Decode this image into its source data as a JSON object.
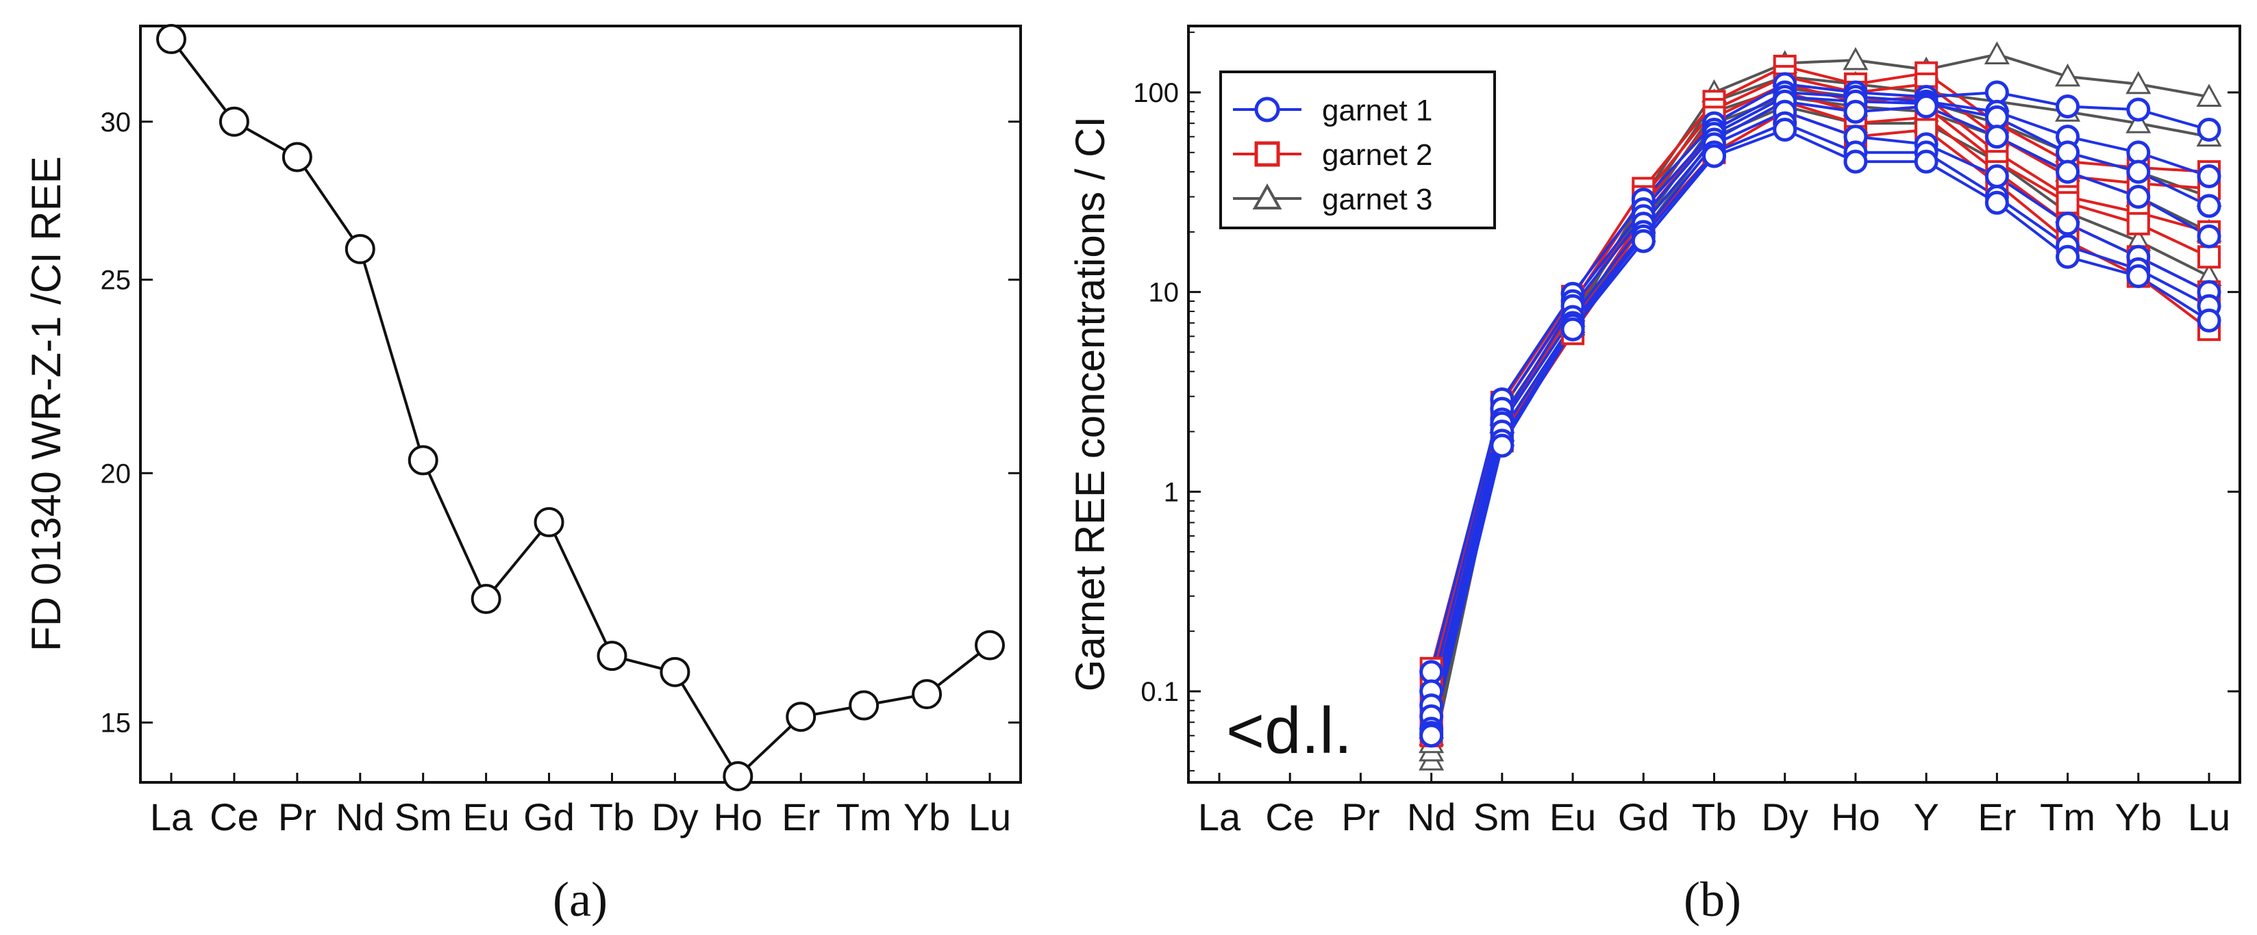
{
  "chart_data": [
    {
      "type": "line",
      "panel_label": "(a)",
      "ylabel": "FD 01340 WR-Z-1 /CI REE",
      "xlabel": "",
      "yscale": "log",
      "ylim": [
        14.0,
        33.5
      ],
      "yticks": [
        "15",
        "20",
        "25",
        "30"
      ],
      "grid": false,
      "categories": [
        "La",
        "Ce",
        "Pr",
        "Nd",
        "Sm",
        "Eu",
        "Gd",
        "Tb",
        "Dy",
        "Ho",
        "Er",
        "Tm",
        "Yb",
        "Lu"
      ],
      "series": [
        {
          "name": "FD 01340 WR-Z-1",
          "values": [
            33.0,
            30.0,
            28.8,
            25.9,
            20.3,
            17.3,
            18.9,
            16.2,
            15.9,
            14.1,
            15.1,
            15.3,
            15.5,
            16.4
          ]
        }
      ]
    },
    {
      "type": "line",
      "panel_label": "(b)",
      "ylabel": "Garnet REE concentrations / CI",
      "xlabel": "",
      "yscale": "log",
      "ylim": [
        0.035,
        215
      ],
      "yticks": [
        "0.1",
        "1",
        "10",
        "100"
      ],
      "grid": false,
      "legend_position": "top-left",
      "annotation": "<d.l.",
      "categories": [
        "La",
        "Ce",
        "Pr",
        "Nd",
        "Sm",
        "Eu",
        "Gd",
        "Tb",
        "Dy",
        "Ho",
        "Y",
        "Er",
        "Tm",
        "Yb",
        "Lu"
      ],
      "series": [
        {
          "name": "garnet 3",
          "group": "garnet 3",
          "color": "#555555",
          "values": [
            null,
            null,
            null,
            0.045,
            2.0,
            7.0,
            30,
            100,
            140,
            145,
            130,
            155,
            120,
            110,
            95
          ]
        },
        {
          "name": "garnet 3",
          "group": "garnet 3",
          "color": "#555555",
          "values": [
            null,
            null,
            null,
            0.05,
            2.2,
            7.5,
            27,
            90,
            120,
            110,
            100,
            90,
            80,
            70,
            60
          ]
        },
        {
          "name": "garnet 3",
          "group": "garnet 3",
          "color": "#555555",
          "values": [
            null,
            null,
            null,
            0.055,
            2.4,
            8.0,
            25,
            80,
            105,
            95,
            90,
            70,
            50,
            40,
            30
          ]
        },
        {
          "name": "garnet 3",
          "group": "garnet 3",
          "color": "#555555",
          "values": [
            null,
            null,
            null,
            0.06,
            2.0,
            7.0,
            22,
            70,
            95,
            85,
            80,
            60,
            40,
            30,
            20
          ]
        },
        {
          "name": "garnet 3",
          "group": "garnet 3",
          "color": "#555555",
          "values": [
            null,
            null,
            null,
            0.065,
            1.9,
            6.8,
            20,
            60,
            85,
            70,
            70,
            45,
            25,
            18,
            12
          ]
        },
        {
          "name": "garnet 2",
          "group": "garnet 2",
          "color": "#e02020",
          "values": [
            null,
            null,
            null,
            0.13,
            2.8,
            9.5,
            33,
            90,
            135,
            110,
            125,
            70,
            45,
            42,
            40
          ]
        },
        {
          "name": "garnet 2",
          "group": "garnet 2",
          "color": "#e02020",
          "values": [
            null,
            null,
            null,
            0.11,
            2.6,
            8.8,
            30,
            82,
            120,
            100,
            110,
            60,
            38,
            35,
            33
          ]
        },
        {
          "name": "garnet 2",
          "group": "garnet 2",
          "color": "#e02020",
          "values": [
            null,
            null,
            null,
            0.09,
            2.3,
            8.0,
            27,
            75,
            110,
            90,
            95,
            50,
            30,
            25,
            20
          ]
        },
        {
          "name": "garnet 2",
          "group": "garnet 2",
          "color": "#e02020",
          "values": [
            null,
            null,
            null,
            0.075,
            2.0,
            7.0,
            24,
            65,
            100,
            80,
            85,
            45,
            28,
            22,
            15
          ]
        },
        {
          "name": "garnet 2",
          "group": "garnet 2",
          "color": "#e02020",
          "values": [
            null,
            null,
            null,
            0.065,
            1.9,
            6.5,
            22,
            58,
            90,
            70,
            75,
            40,
            22,
            15,
            10
          ]
        },
        {
          "name": "garnet 2",
          "group": "garnet 2",
          "color": "#e02020",
          "values": [
            null,
            null,
            null,
            0.06,
            1.8,
            6.2,
            20,
            50,
            80,
            60,
            65,
            35,
            18,
            12,
            6.5
          ]
        },
        {
          "name": "garnet 1",
          "group": "garnet 1",
          "color": "#1f33e6",
          "values": [
            null,
            null,
            null,
            0.125,
            2.9,
            9.8,
            29,
            70,
            110,
            100,
            95,
            100,
            85,
            82,
            65
          ]
        },
        {
          "name": "garnet 1",
          "group": "garnet 1",
          "color": "#1f33e6",
          "values": [
            null,
            null,
            null,
            0.1,
            2.6,
            9.0,
            26,
            65,
            100,
            95,
            90,
            80,
            60,
            50,
            38
          ]
        },
        {
          "name": "garnet 1",
          "group": "garnet 1",
          "color": "#1f33e6",
          "values": [
            null,
            null,
            null,
            0.085,
            2.3,
            8.5,
            24,
            62,
            95,
            90,
            88,
            75,
            50,
            40,
            27
          ]
        },
        {
          "name": "garnet 1",
          "group": "garnet 1",
          "color": "#1f33e6",
          "values": [
            null,
            null,
            null,
            0.075,
            2.2,
            7.5,
            22,
            58,
            90,
            80,
            85,
            60,
            40,
            30,
            19
          ]
        },
        {
          "name": "garnet 1",
          "group": "garnet 1",
          "color": "#1f33e6",
          "values": [
            null,
            null,
            null,
            0.065,
            2.0,
            7.0,
            20,
            55,
            80,
            60,
            55,
            38,
            22,
            15,
            10
          ]
        },
        {
          "name": "garnet 1",
          "group": "garnet 1",
          "color": "#1f33e6",
          "values": [
            null,
            null,
            null,
            0.062,
            1.8,
            6.8,
            19,
            50,
            70,
            50,
            50,
            30,
            17,
            13,
            8.5
          ]
        },
        {
          "name": "garnet 1",
          "group": "garnet 1",
          "color": "#1f33e6",
          "values": [
            null,
            null,
            null,
            0.06,
            1.7,
            6.5,
            18,
            48,
            65,
            45,
            45,
            28,
            15,
            12,
            7.2
          ]
        }
      ],
      "legend": [
        {
          "label": "garnet 1",
          "color": "#1f33e6",
          "marker": "circle"
        },
        {
          "label": "garnet 2",
          "color": "#e02020",
          "marker": "square"
        },
        {
          "label": "garnet 3",
          "color": "#555555",
          "marker": "triangle"
        }
      ]
    }
  ]
}
